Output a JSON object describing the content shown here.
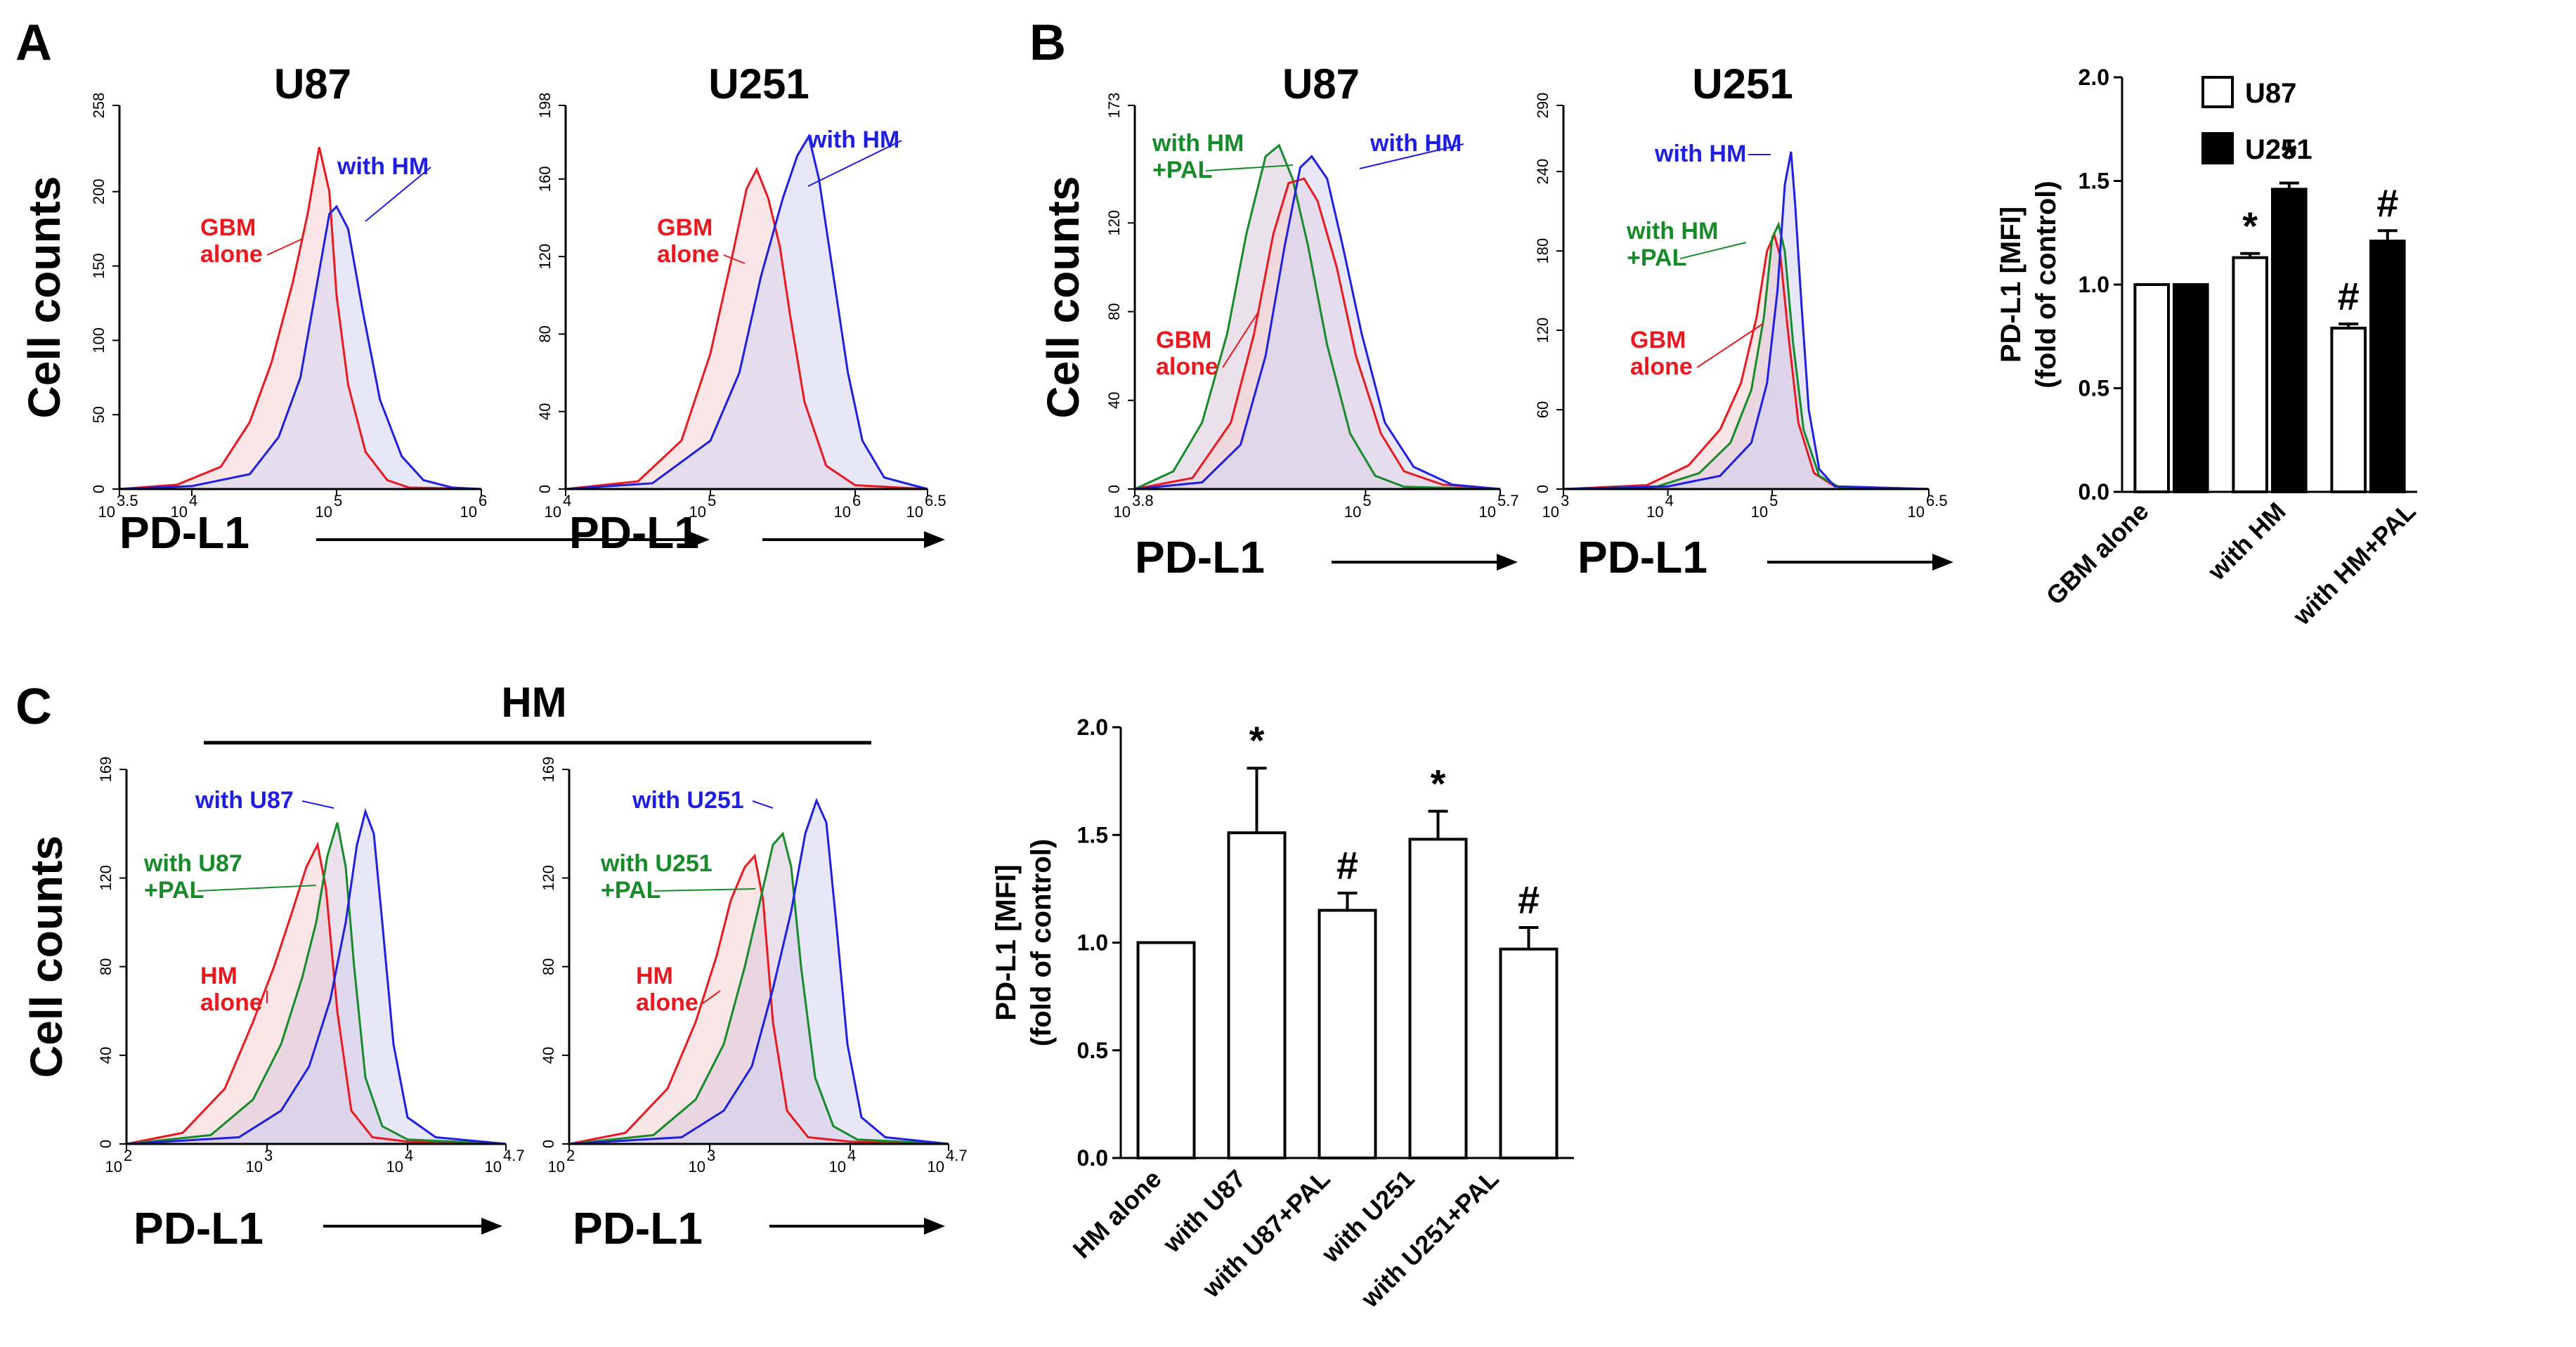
{
  "figure": {
    "panel_labels": [
      "A",
      "B",
      "C"
    ],
    "panel_c_group_label": "HM"
  },
  "colors": {
    "red": "#e8191f",
    "blue": "#1f1fe0",
    "green": "#178a2a",
    "red_fill": "#f6d2d2",
    "blue_fill": "#d4d4f3",
    "overlap_fill": "#dbc9dd"
  },
  "chart_data": [
    {
      "id": "A_U87",
      "type": "area",
      "panel": "A",
      "title": "U87",
      "ylabel": "Cell counts",
      "xlabel": "PD-L1",
      "x_scale": "log10",
      "xlim_exp": [
        3.5,
        6
      ],
      "ylim": [
        0,
        258
      ],
      "yticks": [
        "0",
        "50",
        "100",
        "150",
        "200",
        "258"
      ],
      "xticks": [
        {
          "base": "10",
          "exp": "3.5",
          "value": 3.5
        },
        {
          "base": "10",
          "exp": "4",
          "value": 4
        },
        {
          "base": "10",
          "exp": "5",
          "value": 5
        },
        {
          "base": "10",
          "exp": "6",
          "value": 6
        }
      ],
      "series": [
        {
          "name": "GBM alone",
          "label_lines": [
            "GBM",
            "alone"
          ],
          "color": "red",
          "x_log": [
            3.5,
            3.9,
            4.2,
            4.4,
            4.55,
            4.7,
            4.8,
            4.88,
            4.95,
            5.0,
            5.08,
            5.2,
            5.35,
            5.5,
            6.0
          ],
          "y": [
            0,
            3,
            15,
            45,
            85,
            140,
            185,
            230,
            200,
            130,
            70,
            25,
            6,
            1,
            0
          ]
        },
        {
          "name": "with HM",
          "label_lines": [
            "with HM"
          ],
          "color": "blue",
          "x_log": [
            3.5,
            4.0,
            4.4,
            4.6,
            4.75,
            4.85,
            4.95,
            5.0,
            5.08,
            5.18,
            5.3,
            5.45,
            5.6,
            5.8,
            6.0
          ],
          "y": [
            0,
            2,
            10,
            35,
            75,
            130,
            185,
            190,
            175,
            120,
            60,
            22,
            6,
            1,
            0
          ]
        }
      ],
      "annotations": [
        {
          "text_lines": [
            "GBM",
            "alone"
          ],
          "color": "red",
          "series": "GBM alone"
        },
        {
          "text_lines": [
            "with HM"
          ],
          "color": "blue",
          "series": "with HM"
        }
      ]
    },
    {
      "id": "A_U251",
      "type": "area",
      "panel": "A",
      "title": "U251",
      "xlabel": "PD-L1",
      "x_scale": "log10",
      "xlim_exp": [
        4,
        6.5
      ],
      "ylim": [
        0,
        198
      ],
      "yticks": [
        "0",
        "40",
        "80",
        "120",
        "160",
        "198"
      ],
      "xticks": [
        {
          "base": "10",
          "exp": "4",
          "value": 4
        },
        {
          "base": "10",
          "exp": "5",
          "value": 5
        },
        {
          "base": "10",
          "exp": "6",
          "value": 6
        },
        {
          "base": "10",
          "exp": "6.5",
          "value": 6.5
        }
      ],
      "series": [
        {
          "name": "GBM alone",
          "color": "red",
          "x_log": [
            4.0,
            4.5,
            4.8,
            5.0,
            5.15,
            5.25,
            5.32,
            5.4,
            5.48,
            5.55,
            5.65,
            5.8,
            6.0,
            6.5
          ],
          "y": [
            0,
            4,
            25,
            70,
            120,
            155,
            165,
            150,
            125,
            90,
            45,
            12,
            2,
            0
          ]
        },
        {
          "name": "with HM",
          "color": "blue",
          "x_log": [
            4.0,
            4.6,
            5.0,
            5.2,
            5.35,
            5.5,
            5.6,
            5.68,
            5.75,
            5.85,
            5.95,
            6.05,
            6.2,
            6.5
          ],
          "y": [
            0,
            3,
            25,
            60,
            110,
            150,
            172,
            182,
            160,
            110,
            60,
            25,
            6,
            0
          ]
        }
      ],
      "annotations": [
        {
          "text_lines": [
            "GBM",
            "alone"
          ],
          "color": "red",
          "series": "GBM alone"
        },
        {
          "text_lines": [
            "with HM"
          ],
          "color": "blue",
          "series": "with HM"
        }
      ]
    },
    {
      "id": "B_U87",
      "type": "area",
      "panel": "B",
      "title": "U87",
      "ylabel": "Cell counts",
      "xlabel": "PD-L1",
      "x_scale": "log10",
      "xlim_exp": [
        3.8,
        5.7
      ],
      "ylim": [
        0,
        173
      ],
      "yticks": [
        "0",
        "40",
        "80",
        "120",
        "173"
      ],
      "xticks": [
        {
          "base": "10",
          "exp": "3.8",
          "value": 3.8
        },
        {
          "base": "10",
          "exp": "5",
          "value": 5
        },
        {
          "base": "10",
          "exp": "5.7",
          "value": 5.7
        }
      ],
      "series": [
        {
          "name": "with HM+PAL",
          "color": "green",
          "x_log": [
            3.8,
            4.0,
            4.15,
            4.28,
            4.38,
            4.48,
            4.55,
            4.62,
            4.7,
            4.8,
            4.92,
            5.05,
            5.2,
            5.7
          ],
          "y": [
            0,
            8,
            30,
            70,
            115,
            150,
            155,
            140,
            110,
            65,
            25,
            6,
            1,
            0
          ]
        },
        {
          "name": "GBM alone",
          "color": "red",
          "x_log": [
            3.8,
            4.1,
            4.3,
            4.42,
            4.52,
            4.6,
            4.68,
            4.75,
            4.85,
            4.95,
            5.08,
            5.2,
            5.4,
            5.7
          ],
          "y": [
            0,
            5,
            30,
            70,
            115,
            138,
            140,
            130,
            100,
            60,
            25,
            8,
            2,
            0
          ]
        },
        {
          "name": "with HM",
          "color": "blue",
          "x_log": [
            3.8,
            4.15,
            4.35,
            4.48,
            4.58,
            4.66,
            4.72,
            4.8,
            4.88,
            4.98,
            5.1,
            5.25,
            5.45,
            5.7
          ],
          "y": [
            0,
            3,
            20,
            60,
            110,
            145,
            150,
            140,
            110,
            70,
            30,
            10,
            2,
            0
          ]
        }
      ],
      "annotations": [
        {
          "text_lines": [
            "with HM",
            "+PAL"
          ],
          "color": "green",
          "series": "with HM+PAL"
        },
        {
          "text_lines": [
            "with HM"
          ],
          "color": "blue",
          "series": "with HM"
        },
        {
          "text_lines": [
            "GBM",
            "alone"
          ],
          "color": "red",
          "series": "GBM alone"
        }
      ]
    },
    {
      "id": "B_U251",
      "type": "area",
      "panel": "B",
      "title": "U251",
      "xlabel": "PD-L1",
      "x_scale": "log10",
      "xlim_exp": [
        3,
        6.5
      ],
      "ylim": [
        0,
        290
      ],
      "yticks": [
        "0",
        "60",
        "120",
        "180",
        "240",
        "290"
      ],
      "xticks": [
        {
          "base": "10",
          "exp": "3",
          "value": 3
        },
        {
          "base": "10",
          "exp": "4",
          "value": 4
        },
        {
          "base": "10",
          "exp": "5",
          "value": 5
        },
        {
          "base": "10",
          "exp": "6.5",
          "value": 6.5
        }
      ],
      "series": [
        {
          "name": "GBM alone",
          "color": "red",
          "x_log": [
            3.0,
            3.8,
            4.2,
            4.5,
            4.7,
            4.85,
            4.95,
            5.02,
            5.08,
            5.15,
            5.25,
            5.4,
            5.6,
            6.5
          ],
          "y": [
            0,
            3,
            18,
            45,
            80,
            130,
            180,
            192,
            175,
            120,
            50,
            12,
            2,
            0
          ]
        },
        {
          "name": "with HM+PAL",
          "color": "green",
          "x_log": [
            3.0,
            3.9,
            4.3,
            4.6,
            4.8,
            4.92,
            5.0,
            5.06,
            5.12,
            5.2,
            5.3,
            5.45,
            5.65,
            6.5
          ],
          "y": [
            0,
            2,
            12,
            35,
            75,
            130,
            190,
            200,
            180,
            110,
            45,
            10,
            1,
            0
          ]
        },
        {
          "name": "with HM",
          "color": "blue",
          "x_log": [
            3.0,
            4.0,
            4.5,
            4.8,
            4.95,
            5.05,
            5.12,
            5.18,
            5.22,
            5.28,
            5.35,
            5.45,
            5.6,
            6.5
          ],
          "y": [
            0,
            2,
            10,
            35,
            80,
            150,
            230,
            255,
            215,
            140,
            60,
            15,
            2,
            0
          ]
        }
      ],
      "annotations": [
        {
          "text_lines": [
            "with HM"
          ],
          "color": "blue",
          "series": "with HM"
        },
        {
          "text_lines": [
            "with HM",
            "+PAL"
          ],
          "color": "green",
          "series": "with HM+PAL"
        },
        {
          "text_lines": [
            "GBM",
            "alone"
          ],
          "color": "red",
          "series": "GBM alone"
        }
      ]
    },
    {
      "id": "B_bar",
      "type": "bar",
      "panel": "B",
      "ylabel_lines": [
        "PD-L1  [MFI]",
        "(fold of control)"
      ],
      "ylim": [
        0,
        2
      ],
      "yticks": [
        "0.0",
        "0.5",
        "1.0",
        "1.5",
        "2.0"
      ],
      "categories": [
        "GBM alone",
        "with HM",
        "with HM+PAL"
      ],
      "series": [
        {
          "name": "U87",
          "fill": "white",
          "values": [
            1.0,
            1.13,
            0.79
          ],
          "errors": [
            0,
            0.02,
            0.02
          ],
          "marks": [
            "",
            "*",
            "#"
          ]
        },
        {
          "name": "U251",
          "fill": "black",
          "values": [
            1.0,
            1.46,
            1.21
          ],
          "errors": [
            0,
            0.03,
            0.05
          ],
          "marks": [
            "",
            "*",
            "#"
          ]
        }
      ],
      "legend": "top-right"
    },
    {
      "id": "C_U87",
      "type": "area",
      "panel": "C",
      "ylabel": "Cell counts",
      "xlabel": "PD-L1",
      "x_scale": "log10",
      "xlim_exp": [
        2,
        4.7
      ],
      "ylim": [
        0,
        169
      ],
      "yticks": [
        "0",
        "40",
        "80",
        "120",
        "169"
      ],
      "xticks": [
        {
          "base": "10",
          "exp": "2",
          "value": 2
        },
        {
          "base": "10",
          "exp": "3",
          "value": 3
        },
        {
          "base": "10",
          "exp": "4",
          "value": 4
        },
        {
          "base": "10",
          "exp": "4.7",
          "value": 4.7
        }
      ],
      "series": [
        {
          "name": "HM alone",
          "color": "red",
          "x_log": [
            2.0,
            2.4,
            2.7,
            2.9,
            3.05,
            3.18,
            3.28,
            3.36,
            3.42,
            3.5,
            3.6,
            3.75,
            4.0,
            4.7
          ],
          "y": [
            0,
            5,
            25,
            55,
            80,
            105,
            125,
            135,
            115,
            60,
            15,
            3,
            1,
            0
          ]
        },
        {
          "name": "with U87+PAL",
          "color": "green",
          "x_log": [
            2.0,
            2.6,
            2.9,
            3.1,
            3.25,
            3.35,
            3.43,
            3.5,
            3.56,
            3.62,
            3.7,
            3.82,
            4.0,
            4.7
          ],
          "y": [
            0,
            4,
            20,
            45,
            75,
            100,
            130,
            145,
            125,
            80,
            30,
            8,
            2,
            0
          ]
        },
        {
          "name": "with U87",
          "color": "blue",
          "x_log": [
            2.0,
            2.8,
            3.1,
            3.3,
            3.45,
            3.56,
            3.64,
            3.7,
            3.76,
            3.82,
            3.9,
            4.0,
            4.2,
            4.7
          ],
          "y": [
            0,
            3,
            15,
            35,
            65,
            100,
            135,
            150,
            140,
            100,
            45,
            12,
            3,
            0
          ]
        }
      ],
      "annotations": [
        {
          "text_lines": [
            "with U87"
          ],
          "color": "blue",
          "series": "with U87"
        },
        {
          "text_lines": [
            "with U87",
            "+PAL"
          ],
          "color": "green",
          "series": "with U87+PAL"
        },
        {
          "text_lines": [
            "HM",
            "alone"
          ],
          "color": "red",
          "series": "HM alone"
        }
      ]
    },
    {
      "id": "C_U251",
      "type": "area",
      "panel": "C",
      "xlabel": "PD-L1",
      "x_scale": "log10",
      "xlim_exp": [
        2,
        4.7
      ],
      "ylim": [
        0,
        169
      ],
      "yticks": [
        "0",
        "40",
        "80",
        "120",
        "169"
      ],
      "xticks": [
        {
          "base": "10",
          "exp": "2",
          "value": 2
        },
        {
          "base": "10",
          "exp": "3",
          "value": 3
        },
        {
          "base": "10",
          "exp": "4",
          "value": 4
        },
        {
          "base": "10",
          "exp": "4.7",
          "value": 4.7
        }
      ],
      "series": [
        {
          "name": "HM alone",
          "color": "red",
          "x_log": [
            2.0,
            2.4,
            2.7,
            2.9,
            3.05,
            3.15,
            3.25,
            3.32,
            3.38,
            3.45,
            3.55,
            3.7,
            4.0,
            4.7
          ],
          "y": [
            0,
            5,
            25,
            55,
            85,
            110,
            125,
            130,
            110,
            55,
            15,
            3,
            1,
            0
          ]
        },
        {
          "name": "with U251+PAL",
          "color": "green",
          "x_log": [
            2.0,
            2.6,
            2.9,
            3.1,
            3.25,
            3.36,
            3.45,
            3.52,
            3.58,
            3.65,
            3.75,
            3.88,
            4.05,
            4.7
          ],
          "y": [
            0,
            4,
            20,
            45,
            80,
            110,
            135,
            140,
            125,
            80,
            30,
            8,
            2,
            0
          ]
        },
        {
          "name": "with U251",
          "color": "blue",
          "x_log": [
            2.0,
            2.8,
            3.1,
            3.3,
            3.45,
            3.58,
            3.68,
            3.76,
            3.83,
            3.9,
            3.98,
            4.08,
            4.25,
            4.7
          ],
          "y": [
            0,
            3,
            15,
            35,
            70,
            105,
            140,
            155,
            145,
            100,
            45,
            12,
            3,
            0
          ]
        }
      ],
      "annotations": [
        {
          "text_lines": [
            "with U251"
          ],
          "color": "blue",
          "series": "with U251"
        },
        {
          "text_lines": [
            "with U251",
            "+PAL"
          ],
          "color": "green",
          "series": "with U251+PAL"
        },
        {
          "text_lines": [
            "HM",
            "alone"
          ],
          "color": "red",
          "series": "HM alone"
        }
      ]
    },
    {
      "id": "C_bar",
      "type": "bar",
      "panel": "C",
      "ylabel_lines": [
        "PD-L1  [MFI]",
        "(fold of control)"
      ],
      "ylim": [
        0,
        2
      ],
      "yticks": [
        "0.0",
        "0.5",
        "1.0",
        "1.5",
        "2.0"
      ],
      "categories": [
        "HM alone",
        "with U87",
        "with U87+PAL",
        "with U251",
        "with U251+PAL"
      ],
      "series": [
        {
          "name": "HM",
          "fill": "white",
          "values": [
            1.0,
            1.51,
            1.15,
            1.48,
            0.97
          ],
          "errors": [
            0,
            0.3,
            0.08,
            0.13,
            0.1
          ],
          "marks": [
            "",
            "*",
            "#",
            "*",
            "#"
          ]
        }
      ]
    }
  ]
}
